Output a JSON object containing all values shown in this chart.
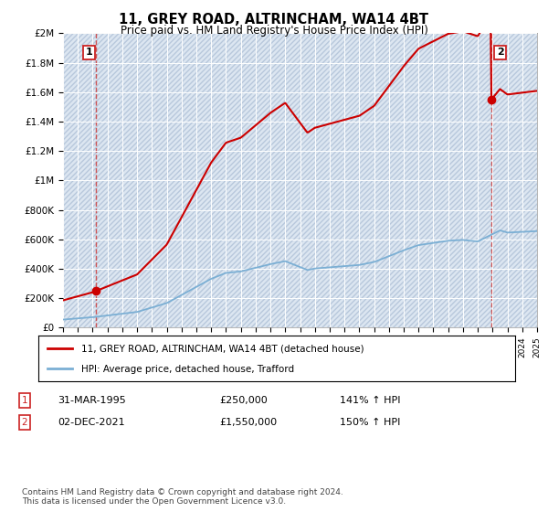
{
  "title": "11, GREY ROAD, ALTRINCHAM, WA14 4BT",
  "subtitle": "Price paid vs. HM Land Registry's House Price Index (HPI)",
  "ylim": [
    0,
    2000000
  ],
  "yticks": [
    0,
    200000,
    400000,
    600000,
    800000,
    1000000,
    1200000,
    1400000,
    1600000,
    1800000,
    2000000
  ],
  "ytick_labels": [
    "£0",
    "£200K",
    "£400K",
    "£600K",
    "£800K",
    "£1M",
    "£1.2M",
    "£1.4M",
    "£1.6M",
    "£1.8M",
    "£2M"
  ],
  "background_color": "#ffffff",
  "plot_bg_color": "#dce6f1",
  "grid_color": "#ffffff",
  "hatch_color": "#b8c8dc",
  "legend_label_red": "11, GREY ROAD, ALTRINCHAM, WA14 4BT (detached house)",
  "legend_label_blue": "HPI: Average price, detached house, Trafford",
  "annotation1_label": "1",
  "annotation1_date": "31-MAR-1995",
  "annotation1_price": "£250,000",
  "annotation1_hpi": "141% ↑ HPI",
  "annotation2_label": "2",
  "annotation2_date": "02-DEC-2021",
  "annotation2_price": "£1,550,000",
  "annotation2_hpi": "150% ↑ HPI",
  "footnote": "Contains HM Land Registry data © Crown copyright and database right 2024.\nThis data is licensed under the Open Government Licence v3.0.",
  "sale1_x": 1995.25,
  "sale1_y": 250000,
  "sale2_x": 2021.92,
  "sale2_y": 1550000,
  "red_line_color": "#cc0000",
  "blue_line_color": "#7bafd4",
  "sale_marker_color": "#cc0000",
  "dashed_line_color": "#cc4444",
  "xlim_left": 1993,
  "xlim_right": 2025
}
